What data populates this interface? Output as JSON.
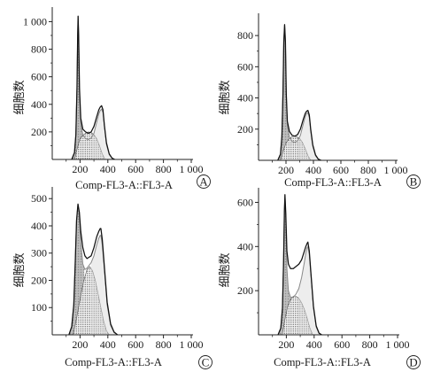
{
  "figure": {
    "panel_order": [
      "A",
      "B",
      "C",
      "D"
    ]
  },
  "chart_data": [
    {
      "panel": "A",
      "type": "area",
      "xlabel": "Comp-FL3-A::FL3-A",
      "ylabel": "细胞数",
      "xlim": [
        0,
        1000
      ],
      "ylim": [
        0,
        1080
      ],
      "xticks": [
        200,
        400,
        600,
        800,
        1000
      ],
      "xtick_labels": [
        "200",
        "400",
        "600",
        "800",
        "1 000"
      ],
      "yticks": [
        200,
        400,
        600,
        800,
        1000
      ],
      "ytick_labels": [
        "200",
        "400",
        "600",
        "800",
        "1 000"
      ],
      "g1_peak": {
        "x": 185,
        "y": 1040
      },
      "g2_peak": {
        "x": 355,
        "y": 390
      },
      "series": [
        {
          "kind": "histogram",
          "x": [
            140,
            160,
            170,
            178,
            183,
            186,
            190,
            196,
            205,
            220,
            240,
            260,
            280,
            300,
            320,
            335,
            345,
            355,
            365,
            375,
            390,
            410,
            430,
            450
          ],
          "y": [
            0,
            50,
            180,
            520,
            900,
            1040,
            900,
            520,
            300,
            220,
            200,
            190,
            200,
            240,
            310,
            360,
            380,
            390,
            360,
            250,
            120,
            40,
            10,
            0
          ]
        },
        {
          "kind": "fit",
          "x": [
            140,
            160,
            170,
            178,
            183,
            186,
            190,
            196,
            205,
            220,
            240,
            260,
            280,
            300,
            320,
            335,
            345,
            355,
            365,
            375,
            390,
            410,
            430,
            450
          ],
          "y": [
            0,
            50,
            180,
            520,
            900,
            1040,
            900,
            500,
            260,
            180,
            150,
            145,
            155,
            190,
            270,
            330,
            355,
            365,
            340,
            240,
            110,
            35,
            8,
            0
          ]
        },
        {
          "kind": "s_phase",
          "x": [
            160,
            180,
            200,
            220,
            240,
            260,
            280,
            300,
            320,
            340,
            360,
            380
          ],
          "y": [
            0,
            80,
            150,
            175,
            190,
            200,
            195,
            180,
            150,
            100,
            40,
            0
          ]
        }
      ]
    },
    {
      "panel": "B",
      "type": "area",
      "xlabel": "Comp-FL3-A::FL3-A",
      "ylabel": "细胞数",
      "xlim": [
        0,
        1000
      ],
      "ylim": [
        0,
        920
      ],
      "xticks": [
        200,
        400,
        600,
        800,
        1000
      ],
      "xtick_labels": [
        "200",
        "400",
        "600",
        "800",
        "1 000"
      ],
      "yticks": [
        200,
        400,
        600,
        800
      ],
      "ytick_labels": [
        "200",
        "400",
        "600",
        "800"
      ],
      "g1_peak": {
        "x": 190,
        "y": 870
      },
      "g2_peak": {
        "x": 360,
        "y": 320
      },
      "series": [
        {
          "kind": "histogram",
          "x": [
            140,
            160,
            170,
            178,
            184,
            190,
            196,
            202,
            210,
            225,
            245,
            265,
            285,
            305,
            325,
            340,
            350,
            360,
            370,
            380,
            395,
            415,
            435,
            455
          ],
          "y": [
            0,
            40,
            150,
            430,
            760,
            870,
            760,
            430,
            250,
            185,
            160,
            155,
            165,
            200,
            260,
            300,
            315,
            320,
            290,
            200,
            100,
            35,
            8,
            0
          ]
        },
        {
          "kind": "fit",
          "x": [
            140,
            160,
            170,
            178,
            184,
            190,
            196,
            202,
            210,
            225,
            245,
            265,
            285,
            305,
            325,
            340,
            350,
            360,
            370,
            380,
            395,
            415,
            435,
            455
          ],
          "y": [
            0,
            40,
            150,
            430,
            760,
            870,
            760,
            410,
            220,
            150,
            120,
            115,
            125,
            160,
            230,
            280,
            300,
            305,
            275,
            190,
            90,
            30,
            6,
            0
          ]
        },
        {
          "kind": "s_phase",
          "x": [
            160,
            180,
            200,
            220,
            240,
            260,
            280,
            300,
            320,
            340,
            360,
            380
          ],
          "y": [
            0,
            60,
            110,
            135,
            150,
            155,
            150,
            140,
            115,
            75,
            30,
            0
          ]
        }
      ]
    },
    {
      "panel": "C",
      "type": "area",
      "xlabel": "Comp-FL3-A::FL3-A",
      "ylabel": "细胞数",
      "xlim": [
        0,
        1000
      ],
      "ylim": [
        0,
        530
      ],
      "xticks": [
        200,
        400,
        600,
        800,
        1000
      ],
      "xtick_labels": [
        "200",
        "400",
        "600",
        "800",
        "1 000"
      ],
      "yticks": [
        100,
        200,
        300,
        400,
        500
      ],
      "ytick_labels": [
        "100",
        "200",
        "300",
        "400",
        "500"
      ],
      "g1_peak": {
        "x": 185,
        "y": 480
      },
      "g2_peak": {
        "x": 350,
        "y": 390
      },
      "series": [
        {
          "kind": "histogram",
          "x": [
            120,
            140,
            155,
            165,
            175,
            185,
            195,
            205,
            220,
            235,
            250,
            265,
            280,
            300,
            320,
            335,
            345,
            350,
            360,
            375,
            395,
            420,
            445,
            470
          ],
          "y": [
            0,
            30,
            110,
            260,
            420,
            480,
            450,
            380,
            320,
            290,
            280,
            285,
            290,
            320,
            360,
            380,
            390,
            390,
            350,
            250,
            120,
            40,
            10,
            0
          ]
        },
        {
          "kind": "fit",
          "x": [
            120,
            140,
            155,
            165,
            175,
            185,
            195,
            205,
            220,
            235,
            250,
            265,
            280,
            300,
            320,
            335,
            345,
            350,
            360,
            375,
            395,
            420,
            445,
            470
          ],
          "y": [
            0,
            30,
            110,
            260,
            420,
            480,
            440,
            340,
            260,
            240,
            245,
            255,
            265,
            290,
            330,
            355,
            365,
            365,
            330,
            240,
            110,
            35,
            8,
            0
          ]
        },
        {
          "kind": "s_phase",
          "x": [
            150,
            175,
            200,
            225,
            250,
            270,
            290,
            310,
            330,
            350,
            370,
            390,
            410
          ],
          "y": [
            0,
            60,
            130,
            195,
            240,
            250,
            235,
            200,
            150,
            100,
            50,
            15,
            0
          ]
        }
      ]
    },
    {
      "panel": "D",
      "type": "area",
      "xlabel": "Comp-FL3-A::FL3-A",
      "ylabel": "细胞数",
      "xlim": [
        0,
        1000
      ],
      "ylim": [
        0,
        650
      ],
      "xticks": [
        200,
        400,
        600,
        800,
        1000
      ],
      "xtick_labels": [
        "200",
        "400",
        "600",
        "800",
        "1 000"
      ],
      "yticks": [
        200,
        400,
        600
      ],
      "ytick_labels": [
        "200",
        "400",
        "600"
      ],
      "g1_peak": {
        "x": 190,
        "y": 635
      },
      "g2_peak": {
        "x": 355,
        "y": 420
      },
      "series": [
        {
          "kind": "histogram",
          "x": [
            140,
            160,
            172,
            180,
            186,
            190,
            196,
            204,
            215,
            230,
            250,
            270,
            290,
            310,
            330,
            340,
            350,
            355,
            365,
            378,
            395,
            415,
            435,
            455
          ],
          "y": [
            0,
            30,
            120,
            330,
            560,
            635,
            550,
            380,
            320,
            300,
            300,
            310,
            320,
            340,
            380,
            400,
            415,
            420,
            380,
            270,
            130,
            40,
            8,
            0
          ]
        },
        {
          "kind": "fit",
          "x": [
            140,
            160,
            172,
            180,
            186,
            190,
            196,
            204,
            215,
            230,
            250,
            270,
            290,
            310,
            330,
            340,
            350,
            355,
            365,
            378,
            395,
            415,
            435,
            455
          ],
          "y": [
            0,
            30,
            120,
            330,
            560,
            635,
            540,
            300,
            200,
            170,
            170,
            185,
            210,
            260,
            330,
            370,
            395,
            400,
            365,
            260,
            120,
            35,
            6,
            0
          ]
        },
        {
          "kind": "s_phase",
          "x": [
            170,
            190,
            210,
            230,
            250,
            270,
            290,
            310,
            330,
            350,
            370,
            390
          ],
          "y": [
            0,
            70,
            130,
            160,
            175,
            175,
            165,
            145,
            115,
            75,
            30,
            0
          ]
        }
      ]
    }
  ]
}
